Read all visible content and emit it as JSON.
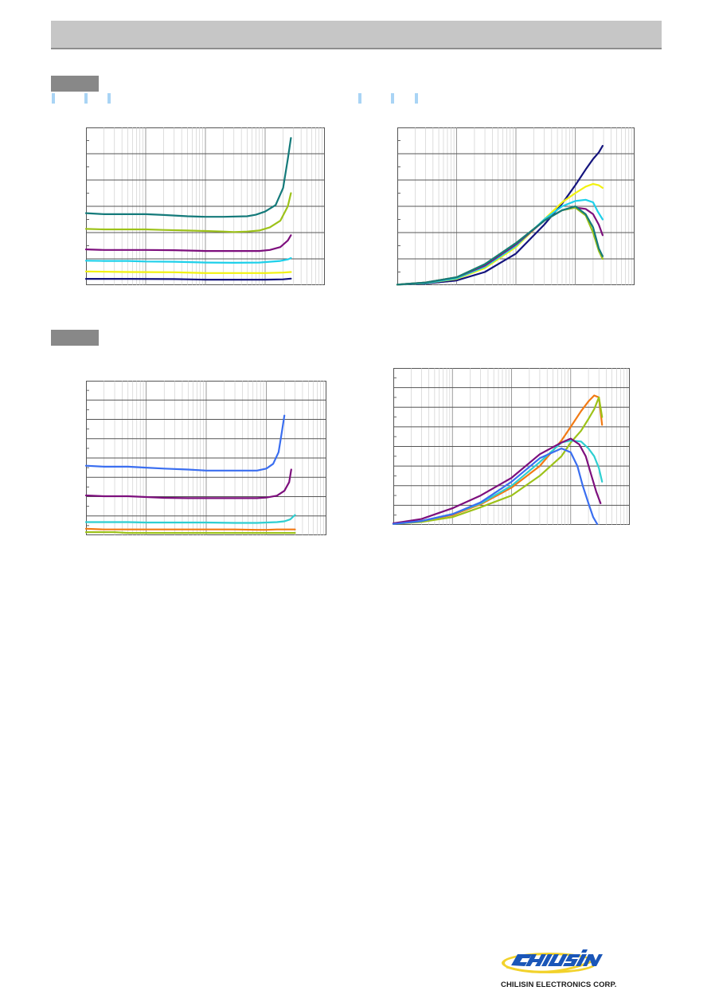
{
  "logo": {
    "brand_text": "CHILISIN",
    "caption": "CHILISIN ELECTRONICS CORP."
  },
  "colors": {
    "header_bar": "#c6c6c6",
    "section_tab": "#888888",
    "tick_marks": "#a9d4f5"
  },
  "chart_data": [
    {
      "type": "line",
      "x_scale": "log",
      "xlim": [
        1,
        10000
      ],
      "ylim": [
        0,
        6
      ],
      "grid": true,
      "series": [
        {
          "color": "#147a7a",
          "x": [
            1,
            2,
            5,
            10,
            20,
            50,
            100,
            200,
            500,
            700,
            1000,
            1500,
            2000,
            2400,
            2700
          ],
          "y": [
            2.74,
            2.7,
            2.7,
            2.7,
            2.67,
            2.62,
            2.6,
            2.6,
            2.62,
            2.68,
            2.8,
            3.05,
            3.7,
            4.8,
            5.6
          ]
        },
        {
          "color": "#9dc219",
          "x": [
            1,
            2,
            5,
            10,
            20,
            50,
            100,
            200,
            300,
            500,
            800,
            1200,
            1800,
            2400,
            2700
          ],
          "y": [
            2.14,
            2.12,
            2.12,
            2.12,
            2.1,
            2.08,
            2.06,
            2.04,
            2.02,
            2.04,
            2.08,
            2.2,
            2.45,
            3.0,
            3.5
          ]
        },
        {
          "color": "#7d0f7d",
          "x": [
            1,
            2,
            5,
            10,
            30,
            100,
            300,
            800,
            1200,
            1800,
            2400,
            2700
          ],
          "y": [
            1.36,
            1.34,
            1.34,
            1.34,
            1.33,
            1.3,
            1.3,
            1.3,
            1.34,
            1.45,
            1.7,
            1.9
          ]
        },
        {
          "color": "#1ed0ea",
          "x": [
            1,
            2,
            5,
            10,
            30,
            100,
            300,
            800,
            1200,
            1800,
            2400,
            2700
          ],
          "y": [
            0.93,
            0.92,
            0.92,
            0.9,
            0.89,
            0.86,
            0.85,
            0.86,
            0.89,
            0.92,
            0.98,
            1.03
          ]
        },
        {
          "color": "#f2f20f",
          "x": [
            1,
            5,
            30,
            100,
            300,
            1000,
            2000,
            2700
          ],
          "y": [
            0.52,
            0.5,
            0.49,
            0.46,
            0.46,
            0.46,
            0.48,
            0.5
          ]
        },
        {
          "color": "#14147d",
          "x": [
            1,
            5,
            30,
            100,
            300,
            1000,
            2000,
            2700
          ],
          "y": [
            0.24,
            0.24,
            0.23,
            0.21,
            0.21,
            0.21,
            0.22,
            0.25
          ]
        }
      ]
    },
    {
      "type": "line",
      "x_scale": "log",
      "xlim": [
        1,
        10000
      ],
      "ylim": [
        0,
        6
      ],
      "grid": true,
      "series": [
        {
          "color": "#14147d",
          "x": [
            1,
            3,
            10,
            30,
            100,
            300,
            600,
            1000,
            1500,
            2000,
            2500,
            2900
          ],
          "y": [
            0.02,
            0.06,
            0.18,
            0.5,
            1.2,
            2.3,
            3.1,
            3.8,
            4.4,
            4.8,
            5.05,
            5.3
          ]
        },
        {
          "color": "#f2f20f",
          "x": [
            1,
            3,
            10,
            30,
            100,
            300,
            600,
            1000,
            1500,
            2000,
            2500,
            2900
          ],
          "y": [
            0.02,
            0.08,
            0.24,
            0.65,
            1.45,
            2.5,
            3.15,
            3.5,
            3.75,
            3.85,
            3.8,
            3.7
          ]
        },
        {
          "color": "#1ed0ea",
          "x": [
            1,
            3,
            10,
            30,
            100,
            300,
            600,
            1000,
            1500,
            2000,
            2400,
            2900
          ],
          "y": [
            0.02,
            0.08,
            0.26,
            0.7,
            1.5,
            2.5,
            3.0,
            3.2,
            3.25,
            3.15,
            2.8,
            2.5
          ]
        },
        {
          "color": "#7d0f7d",
          "x": [
            1,
            3,
            10,
            30,
            100,
            300,
            600,
            1000,
            1500,
            2000,
            2500,
            2900
          ],
          "y": [
            0.02,
            0.1,
            0.3,
            0.75,
            1.55,
            2.45,
            2.85,
            2.95,
            2.9,
            2.7,
            2.3,
            1.9
          ]
        },
        {
          "color": "#9dc219",
          "x": [
            1,
            3,
            10,
            30,
            100,
            300,
            600,
            1000,
            1500,
            2000,
            2500,
            2900
          ],
          "y": [
            0.02,
            0.1,
            0.3,
            0.8,
            1.6,
            2.45,
            2.85,
            2.95,
            2.65,
            2.0,
            1.3,
            1.0
          ]
        },
        {
          "color": "#147a7a",
          "x": [
            1,
            3,
            10,
            30,
            100,
            300,
            600,
            1000,
            1500,
            2000,
            2500,
            2900
          ],
          "y": [
            0.02,
            0.1,
            0.3,
            0.8,
            1.6,
            2.45,
            2.85,
            3.0,
            2.7,
            2.2,
            1.4,
            1.1
          ]
        }
      ]
    },
    {
      "type": "line",
      "x_scale": "log",
      "xlim": [
        1,
        10000
      ],
      "ylim": [
        0,
        8
      ],
      "grid": true,
      "series": [
        {
          "color": "#3a6ef0",
          "x": [
            1,
            2,
            5,
            10,
            20,
            50,
            100,
            300,
            700,
            1000,
            1300,
            1600,
            1800,
            2000
          ],
          "y": [
            3.6,
            3.55,
            3.55,
            3.5,
            3.45,
            3.4,
            3.35,
            3.35,
            3.35,
            3.45,
            3.7,
            4.3,
            5.3,
            6.2
          ]
        },
        {
          "color": "#7d0f7d",
          "x": [
            1,
            2,
            5,
            10,
            20,
            50,
            100,
            300,
            700,
            1000,
            1500,
            2000,
            2400,
            2600
          ],
          "y": [
            2.06,
            2.02,
            2.02,
            1.98,
            1.94,
            1.92,
            1.92,
            1.92,
            1.92,
            1.95,
            2.05,
            2.3,
            2.75,
            3.4
          ]
        },
        {
          "color": "#2ecfd1",
          "x": [
            1,
            2,
            5,
            10,
            30,
            100,
            300,
            700,
            1000,
            1500,
            2000,
            2500,
            3000
          ],
          "y": [
            0.68,
            0.68,
            0.68,
            0.66,
            0.66,
            0.66,
            0.64,
            0.64,
            0.66,
            0.68,
            0.72,
            0.82,
            1.05
          ]
        },
        {
          "color": "#f27a14",
          "x": [
            1,
            2,
            5,
            10,
            30,
            100,
            300,
            700,
            1000,
            1500,
            2000,
            3000
          ],
          "y": [
            0.34,
            0.3,
            0.3,
            0.3,
            0.3,
            0.3,
            0.3,
            0.28,
            0.28,
            0.3,
            0.3,
            0.3
          ]
        },
        {
          "color": "#9dc219",
          "x": [
            1,
            2,
            3,
            5,
            10,
            30,
            100,
            300,
            700,
            1000,
            1500,
            2000,
            3000
          ],
          "y": [
            0.16,
            0.16,
            0.16,
            0.12,
            0.12,
            0.12,
            0.12,
            0.12,
            0.12,
            0.12,
            0.12,
            0.12,
            0.12
          ]
        }
      ]
    },
    {
      "type": "line",
      "x_scale": "log",
      "xlim": [
        1,
        10000
      ],
      "ylim": [
        0,
        8
      ],
      "grid": true,
      "series": [
        {
          "color": "#f27a14",
          "x": [
            1,
            3,
            10,
            30,
            100,
            300,
            700,
            1000,
            1500,
            2000,
            2500,
            3000,
            3400
          ],
          "y": [
            0.05,
            0.2,
            0.5,
            1.05,
            1.9,
            3.0,
            4.3,
            5.0,
            5.8,
            6.3,
            6.6,
            6.5,
            5.1
          ]
        },
        {
          "color": "#9dc219",
          "x": [
            1,
            3,
            10,
            30,
            100,
            300,
            700,
            1000,
            1500,
            2000,
            2500,
            3000,
            3400
          ],
          "y": [
            0.05,
            0.15,
            0.4,
            0.9,
            1.5,
            2.5,
            3.5,
            4.2,
            4.8,
            5.4,
            5.9,
            6.5,
            5.5
          ]
        },
        {
          "color": "#2ecfd1",
          "x": [
            1,
            3,
            10,
            30,
            100,
            300,
            700,
            1000,
            1500,
            2000,
            2500,
            3000,
            3400
          ],
          "y": [
            0.05,
            0.2,
            0.55,
            1.1,
            2.0,
            3.2,
            4.2,
            4.3,
            4.25,
            3.9,
            3.5,
            2.9,
            2.2
          ]
        },
        {
          "color": "#7d0f7d",
          "x": [
            1,
            3,
            10,
            30,
            100,
            300,
            700,
            1000,
            1400,
            1800,
            2200,
            2700,
            3200
          ],
          "y": [
            0.08,
            0.3,
            0.85,
            1.5,
            2.4,
            3.6,
            4.2,
            4.4,
            4.1,
            3.5,
            2.6,
            1.7,
            1.1
          ]
        },
        {
          "color": "#3a6ef0",
          "x": [
            1,
            3,
            10,
            30,
            100,
            300,
            700,
            1000,
            1300,
            1600,
            2000,
            2400,
            2800
          ],
          "y": [
            0.05,
            0.2,
            0.55,
            1.15,
            2.2,
            3.4,
            3.9,
            3.7,
            3.0,
            2.0,
            1.1,
            0.4,
            0.05
          ]
        }
      ]
    }
  ]
}
